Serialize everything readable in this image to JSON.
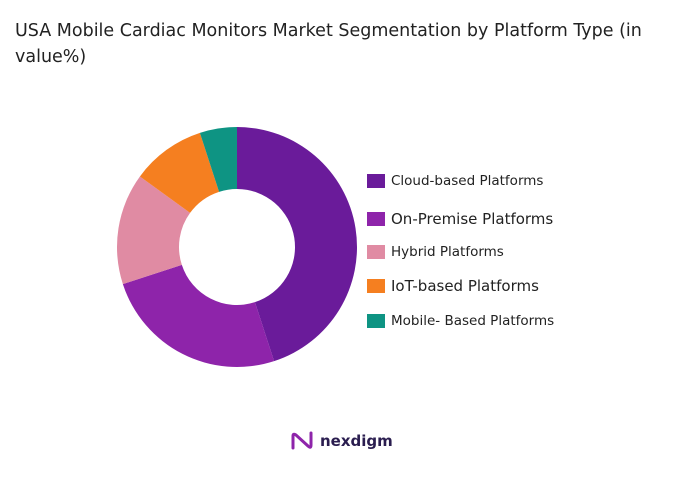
{
  "chart_data": {
    "type": "pie",
    "donut": true,
    "title": "USA Mobile Cardiac Monitors Market Segmentation by Platform Type (in value%)",
    "categories": [
      "Cloud-based Platforms",
      "On-Premise Platforms",
      "Hybrid Platforms",
      "IoT-based Platforms",
      "Mobile- Based Platforms"
    ],
    "values": [
      45,
      25,
      15,
      10,
      5
    ],
    "colors": [
      "#6a1b9a",
      "#8e24aa",
      "#e08ba3",
      "#f57f20",
      "#0e9483"
    ],
    "legend": "right"
  },
  "logo": {
    "text": "nexdigm"
  }
}
